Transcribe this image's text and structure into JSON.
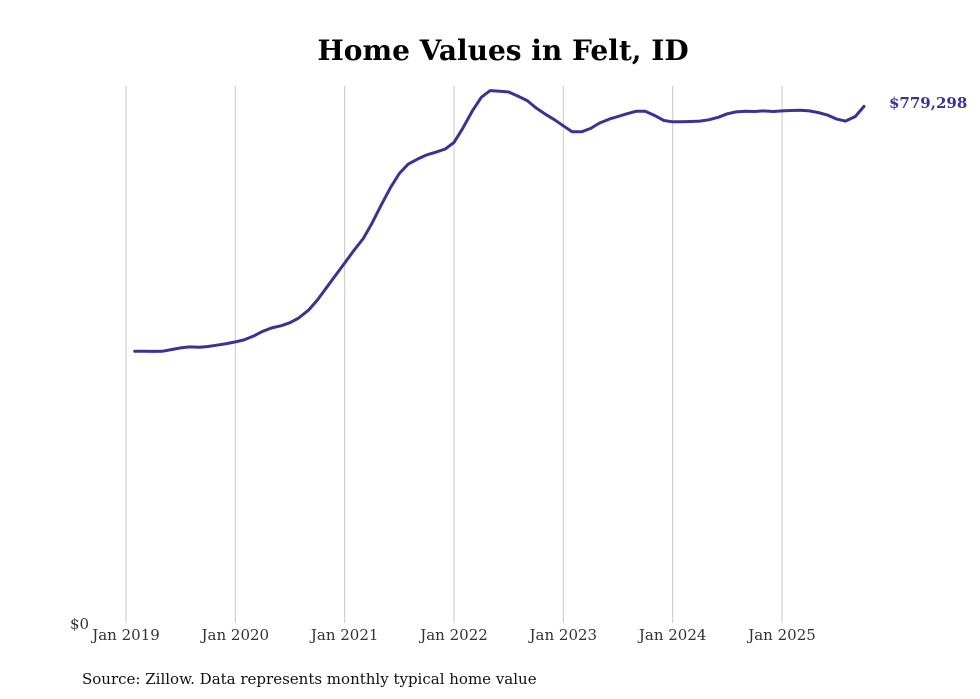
{
  "chart_data": {
    "type": "line",
    "title": "Home Values in Felt, ID",
    "source": "Source: Zillow. Data represents monthly typical home value",
    "series_color": "#3a3394",
    "ylabel": "",
    "xlabel": "",
    "ylim": [
      0,
      810000
    ],
    "y_tick_label": "$0",
    "x_ticks": [
      {
        "label": "Jan 2019",
        "t": 2019.0
      },
      {
        "label": "Jan 2020",
        "t": 2020.0
      },
      {
        "label": "Jan 2021",
        "t": 2021.0
      },
      {
        "label": "Jan 2022",
        "t": 2022.0
      },
      {
        "label": "Jan 2023",
        "t": 2023.0
      },
      {
        "label": "Jan 2024",
        "t": 2024.0
      },
      {
        "label": "Jan 2025",
        "t": 2025.0
      }
    ],
    "end_label": "$779,298",
    "series": [
      {
        "name": "Typical home value",
        "points": [
          [
            2019.08,
            410000
          ],
          [
            2019.17,
            409800
          ],
          [
            2019.25,
            409700
          ],
          [
            2019.33,
            409900
          ],
          [
            2019.42,
            412500
          ],
          [
            2019.5,
            415000
          ],
          [
            2019.58,
            416500
          ],
          [
            2019.67,
            416000
          ],
          [
            2019.75,
            417000
          ],
          [
            2019.83,
            419000
          ],
          [
            2019.92,
            421500
          ],
          [
            2020.0,
            424000
          ],
          [
            2020.08,
            427000
          ],
          [
            2020.17,
            433000
          ],
          [
            2020.25,
            440000
          ],
          [
            2020.33,
            445000
          ],
          [
            2020.42,
            448500
          ],
          [
            2020.5,
            453000
          ],
          [
            2020.58,
            460000
          ],
          [
            2020.67,
            472000
          ],
          [
            2020.75,
            487000
          ],
          [
            2020.83,
            505000
          ],
          [
            2020.92,
            525000
          ],
          [
            2021.0,
            543000
          ],
          [
            2021.08,
            561000
          ],
          [
            2021.17,
            580000
          ],
          [
            2021.25,
            603000
          ],
          [
            2021.33,
            629000
          ],
          [
            2021.42,
            657000
          ],
          [
            2021.5,
            678000
          ],
          [
            2021.58,
            692000
          ],
          [
            2021.67,
            700000
          ],
          [
            2021.75,
            706000
          ],
          [
            2021.83,
            710000
          ],
          [
            2021.92,
            715000
          ],
          [
            2022.0,
            725000
          ],
          [
            2022.08,
            746000
          ],
          [
            2022.17,
            773000
          ],
          [
            2022.25,
            793000
          ],
          [
            2022.33,
            803000
          ],
          [
            2022.42,
            802000
          ],
          [
            2022.5,
            801000
          ],
          [
            2022.58,
            795000
          ],
          [
            2022.67,
            788000
          ],
          [
            2022.75,
            777000
          ],
          [
            2022.83,
            768000
          ],
          [
            2022.92,
            759000
          ],
          [
            2023.0,
            750000
          ],
          [
            2023.08,
            741000
          ],
          [
            2023.17,
            741000
          ],
          [
            2023.25,
            746000
          ],
          [
            2023.33,
            754000
          ],
          [
            2023.42,
            760000
          ],
          [
            2023.5,
            764000
          ],
          [
            2023.58,
            768000
          ],
          [
            2023.67,
            772000
          ],
          [
            2023.75,
            772000
          ],
          [
            2023.83,
            766000
          ],
          [
            2023.92,
            758000
          ],
          [
            2024.0,
            756000
          ],
          [
            2024.08,
            756000
          ],
          [
            2024.17,
            756500
          ],
          [
            2024.25,
            757000
          ],
          [
            2024.33,
            759000
          ],
          [
            2024.42,
            763000
          ],
          [
            2024.5,
            768000
          ],
          [
            2024.58,
            771000
          ],
          [
            2024.67,
            772000
          ],
          [
            2024.75,
            771500
          ],
          [
            2024.83,
            772500
          ],
          [
            2024.92,
            771500
          ],
          [
            2025.0,
            772500
          ],
          [
            2025.08,
            773000
          ],
          [
            2025.17,
            773500
          ],
          [
            2025.25,
            772500
          ],
          [
            2025.33,
            770000
          ],
          [
            2025.42,
            766000
          ],
          [
            2025.5,
            760000
          ],
          [
            2025.58,
            757000
          ],
          [
            2025.67,
            764000
          ],
          [
            2025.75,
            779298
          ]
        ]
      }
    ]
  }
}
